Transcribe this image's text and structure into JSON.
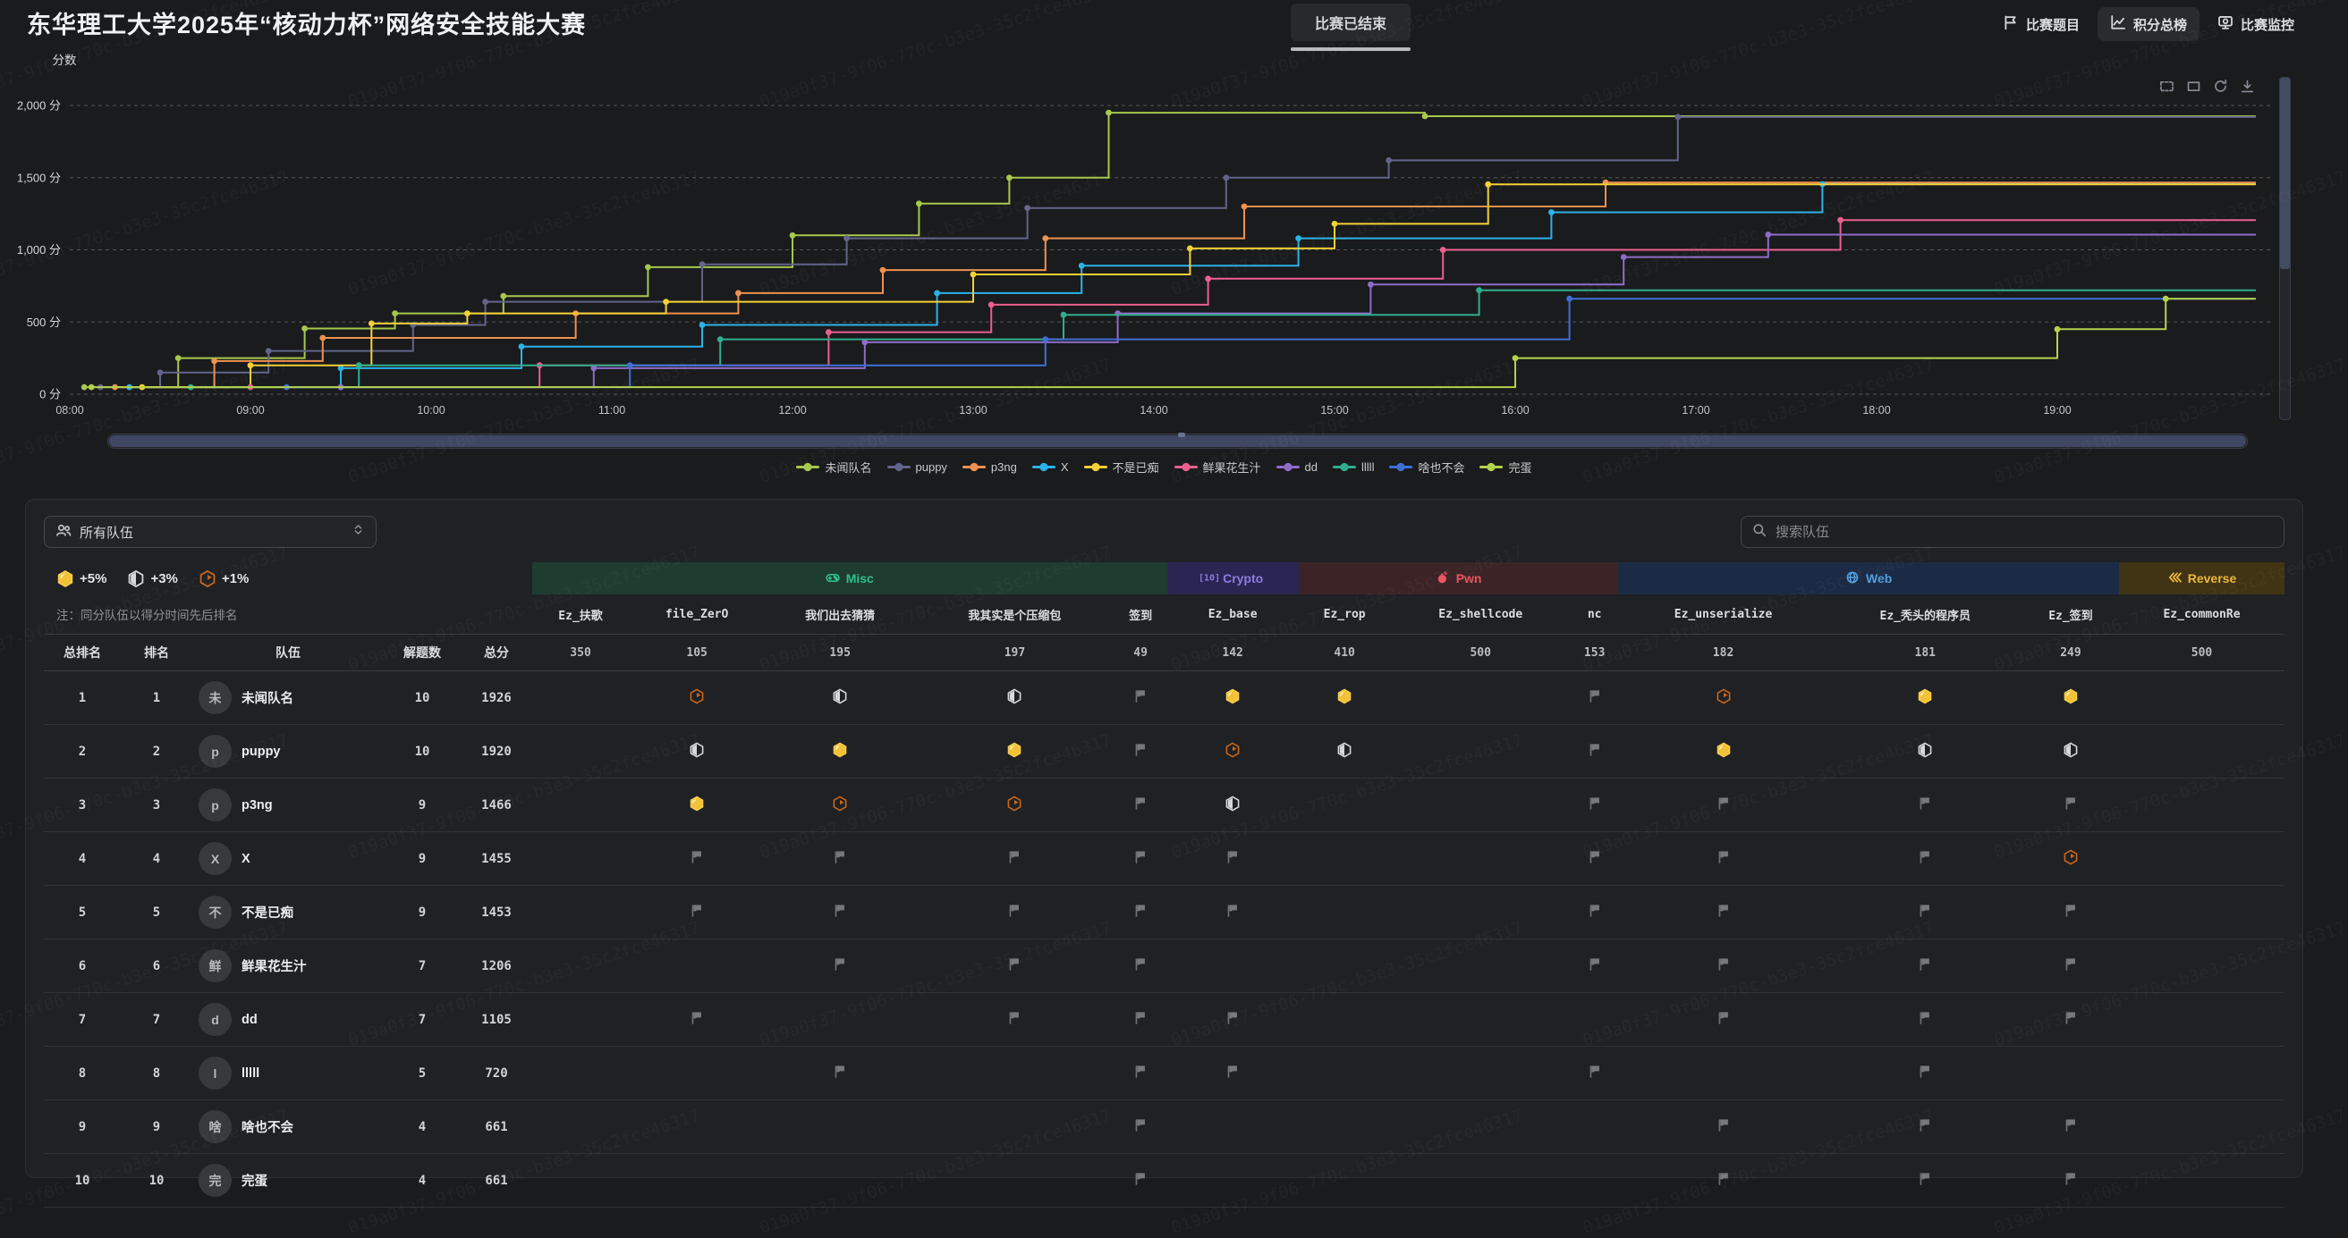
{
  "watermark_text": "019a0f37-9f06-770c-b3e3-35c2fce46317",
  "header": {
    "title": "东华理工大学2025年“核动力杯”网络安全技能大赛",
    "status_tab": "比赛已结束",
    "nav": [
      {
        "label": "比赛题目",
        "icon": "flag-icon",
        "active": false
      },
      {
        "label": "积分总榜",
        "icon": "line-chart-icon",
        "active": true
      },
      {
        "label": "比赛监控",
        "icon": "monitor-icon",
        "active": false
      }
    ]
  },
  "chart_data": {
    "type": "line",
    "subtype": "step-after",
    "y_axis_name": "分数",
    "ylim": [
      0,
      2000
    ],
    "y_ticks": [
      0,
      500,
      1000,
      1500,
      2000
    ],
    "y_tick_labels": [
      "0 分",
      "500 分",
      "1,000 分",
      "1,500 分",
      "2,000 分"
    ],
    "x_tick_labels": [
      "08:00",
      "09:00",
      "10:00",
      "11:00",
      "12:00",
      "13:00",
      "14:00",
      "15:00",
      "16:00",
      "17:00",
      "18:00",
      "19:00"
    ],
    "x_range_hours": [
      8,
      20
    ],
    "grid": "dashed-horizontal",
    "legend_position": "bottom",
    "series": [
      {
        "name": "未闻队名",
        "color": "#a6c84d",
        "points": [
          [
            8.08,
            49
          ],
          [
            8.6,
            250
          ],
          [
            9.3,
            455
          ],
          [
            9.8,
            560
          ],
          [
            10.4,
            680
          ],
          [
            11.2,
            880
          ],
          [
            12.0,
            1100
          ],
          [
            12.7,
            1320
          ],
          [
            13.2,
            1500
          ],
          [
            13.75,
            1950
          ],
          [
            15.5,
            1926
          ]
        ]
      },
      {
        "name": "puppy",
        "color": "#62648c",
        "points": [
          [
            8.17,
            49
          ],
          [
            8.5,
            150
          ],
          [
            9.1,
            300
          ],
          [
            9.9,
            480
          ],
          [
            10.3,
            640
          ],
          [
            11.5,
            900
          ],
          [
            12.3,
            1080
          ],
          [
            13.3,
            1290
          ],
          [
            14.4,
            1500
          ],
          [
            15.3,
            1620
          ],
          [
            16.9,
            1920
          ]
        ]
      },
      {
        "name": "p3ng",
        "color": "#ef9150",
        "points": [
          [
            8.25,
            49
          ],
          [
            8.8,
            230
          ],
          [
            9.4,
            390
          ],
          [
            10.8,
            560
          ],
          [
            11.7,
            700
          ],
          [
            12.5,
            860
          ],
          [
            13.4,
            1080
          ],
          [
            14.5,
            1300
          ],
          [
            16.5,
            1466
          ]
        ]
      },
      {
        "name": "X",
        "color": "#2bb3e8",
        "points": [
          [
            8.33,
            49
          ],
          [
            9.5,
            180
          ],
          [
            10.5,
            330
          ],
          [
            11.5,
            480
          ],
          [
            12.8,
            700
          ],
          [
            13.6,
            890
          ],
          [
            14.8,
            1080
          ],
          [
            16.2,
            1260
          ],
          [
            17.7,
            1455
          ]
        ]
      },
      {
        "name": "不是已痴",
        "color": "#f3d135",
        "points": [
          [
            8.4,
            49
          ],
          [
            9.0,
            200
          ],
          [
            9.67,
            490
          ],
          [
            10.2,
            560
          ],
          [
            11.3,
            640
          ],
          [
            13.0,
            830
          ],
          [
            14.2,
            1010
          ],
          [
            15.0,
            1180
          ],
          [
            15.85,
            1453
          ]
        ]
      },
      {
        "name": "鲜果花生汁",
        "color": "#ec5f8d",
        "points": [
          [
            9.0,
            49
          ],
          [
            10.6,
            200
          ],
          [
            12.2,
            430
          ],
          [
            13.1,
            620
          ],
          [
            14.3,
            800
          ],
          [
            15.6,
            1000
          ],
          [
            17.8,
            1206
          ]
        ]
      },
      {
        "name": "dd",
        "color": "#8f6cc9",
        "points": [
          [
            9.5,
            49
          ],
          [
            10.9,
            180
          ],
          [
            12.4,
            360
          ],
          [
            13.8,
            560
          ],
          [
            15.2,
            760
          ],
          [
            16.6,
            950
          ],
          [
            17.4,
            1105
          ]
        ]
      },
      {
        "name": "lllll",
        "color": "#2fae8e",
        "points": [
          [
            8.67,
            49
          ],
          [
            9.6,
            200
          ],
          [
            11.6,
            380
          ],
          [
            13.5,
            550
          ],
          [
            15.8,
            720
          ]
        ]
      },
      {
        "name": "啥也不会",
        "color": "#3f6fd6",
        "points": [
          [
            9.2,
            49
          ],
          [
            11.1,
            200
          ],
          [
            13.4,
            380
          ],
          [
            16.3,
            661
          ]
        ]
      },
      {
        "name": "完蛋",
        "color": "#b4d24b",
        "points": [
          [
            8.12,
            49
          ],
          [
            16.0,
            250
          ],
          [
            19.0,
            450
          ],
          [
            19.6,
            661
          ]
        ]
      }
    ]
  },
  "scoreboard": {
    "team_filter_label": "所有队伍",
    "search_placeholder": "搜索队伍",
    "note": "注：同分队伍以得分时间先后排名",
    "blood_legend": [
      {
        "badge": "gold",
        "label": "+5%"
      },
      {
        "badge": "silver",
        "label": "+3%"
      },
      {
        "badge": "bronze",
        "label": "+1%"
      }
    ],
    "left_headers": [
      "总排名",
      "排名",
      "队伍",
      "解题数",
      "总分"
    ],
    "categories": [
      {
        "name": "Misc",
        "span": 5,
        "color": "#30c08a",
        "bg": "#1e3c30",
        "icon": "gamepad-icon"
      },
      {
        "name": "Crypto",
        "span": 1,
        "color": "#8d7bdf",
        "bg": "#2b2553",
        "icon": "binary-icon"
      },
      {
        "name": "Pwn",
        "span": 3,
        "color": "#e85560",
        "bg": "#3c2426",
        "icon": "bomb-icon"
      },
      {
        "name": "Web",
        "span": 3,
        "color": "#4f9fe0",
        "bg": "#1c2b45",
        "icon": "globe-icon"
      },
      {
        "name": "Reverse",
        "span": 1,
        "color": "#edb73a",
        "bg": "#403414",
        "icon": "chevrons-left-icon"
      }
    ],
    "challenges": [
      {
        "name": "Ez_扶歌",
        "points": 350
      },
      {
        "name": "file_ZerO",
        "points": 105
      },
      {
        "name": "我们出去猜猜",
        "points": 195
      },
      {
        "name": "我其实是个压缩包",
        "points": 197
      },
      {
        "name": "签到",
        "points": 49
      },
      {
        "name": "Ez_base",
        "points": 142
      },
      {
        "name": "Ez_rop",
        "points": 410
      },
      {
        "name": "Ez_shellcode",
        "points": 500
      },
      {
        "name": "nc",
        "points": 153
      },
      {
        "name": "Ez_unserialize",
        "points": 182
      },
      {
        "name": "Ez_秃头的程序员",
        "points": 181
      },
      {
        "name": "Ez_签到",
        "points": 249
      },
      {
        "name": "Ez_commonRe",
        "points": 500
      }
    ],
    "rows": [
      {
        "overall": 1,
        "rank": 1,
        "avatar": "未",
        "team": "未闻队名",
        "solved": 10,
        "score": 1926,
        "cells": [
          "",
          "bronze",
          "silver",
          "silver",
          "flag",
          "gold",
          "gold",
          "",
          "flag",
          "bronze",
          "gold",
          "gold",
          ""
        ]
      },
      {
        "overall": 2,
        "rank": 2,
        "avatar": "p",
        "team": "puppy",
        "solved": 10,
        "score": 1920,
        "cells": [
          "",
          "silver",
          "gold",
          "gold",
          "flag",
          "bronze",
          "silver",
          "",
          "flag",
          "gold",
          "silver",
          "silver",
          ""
        ]
      },
      {
        "overall": 3,
        "rank": 3,
        "avatar": "p",
        "team": "p3ng",
        "solved": 9,
        "score": 1466,
        "cells": [
          "",
          "gold",
          "bronze",
          "bronze",
          "flag",
          "silver",
          "",
          "",
          "flag",
          "flag",
          "flag",
          "flag",
          ""
        ]
      },
      {
        "overall": 4,
        "rank": 4,
        "avatar": "X",
        "team": "X",
        "solved": 9,
        "score": 1455,
        "cells": [
          "",
          "flag",
          "flag",
          "flag",
          "flag",
          "flag",
          "",
          "",
          "flag",
          "flag",
          "flag",
          "bronze",
          ""
        ]
      },
      {
        "overall": 5,
        "rank": 5,
        "avatar": "不",
        "team": "不是已痴",
        "solved": 9,
        "score": 1453,
        "cells": [
          "",
          "flag",
          "flag",
          "flag",
          "flag",
          "flag",
          "",
          "",
          "flag",
          "flag",
          "flag",
          "flag",
          ""
        ]
      },
      {
        "overall": 6,
        "rank": 6,
        "avatar": "鲜",
        "team": "鲜果花生汁",
        "solved": 7,
        "score": 1206,
        "cells": [
          "",
          "",
          "flag",
          "flag",
          "flag",
          "",
          "",
          "",
          "flag",
          "flag",
          "flag",
          "flag",
          ""
        ]
      },
      {
        "overall": 7,
        "rank": 7,
        "avatar": "d",
        "team": "dd",
        "solved": 7,
        "score": 1105,
        "cells": [
          "",
          "flag",
          "",
          "flag",
          "flag",
          "flag",
          "",
          "",
          "",
          "flag",
          "flag",
          "flag",
          ""
        ]
      },
      {
        "overall": 8,
        "rank": 8,
        "avatar": "l",
        "team": "lllll",
        "solved": 5,
        "score": 720,
        "cells": [
          "",
          "",
          "flag",
          "",
          "flag",
          "flag",
          "",
          "",
          "flag",
          "",
          "flag",
          "",
          ""
        ]
      },
      {
        "overall": 9,
        "rank": 9,
        "avatar": "啥",
        "team": "啥也不会",
        "solved": 4,
        "score": 661,
        "cells": [
          "",
          "",
          "",
          "",
          "flag",
          "",
          "",
          "",
          "",
          "flag",
          "flag",
          "flag",
          ""
        ]
      },
      {
        "overall": 10,
        "rank": 10,
        "avatar": "完",
        "team": "完蛋",
        "solved": 4,
        "score": 661,
        "cells": [
          "",
          "",
          "",
          "",
          "flag",
          "",
          "",
          "",
          "",
          "flag",
          "flag",
          "flag",
          ""
        ]
      }
    ]
  }
}
